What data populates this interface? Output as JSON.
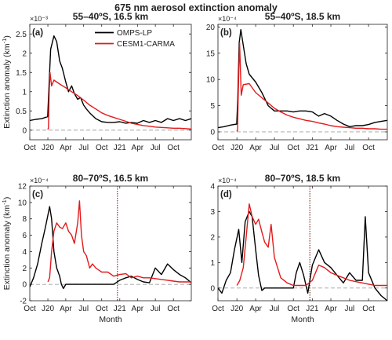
{
  "figure": {
    "title": "675 nm aerosol extinction anomaly",
    "ylabel_base": "Extinction anomaly (km",
    "ylabel_sup": "-1",
    "ylabel_end": ")",
    "xlabel": "Month"
  },
  "legend": {
    "items": [
      {
        "name": "OMPS-LP",
        "color": "#000000"
      },
      {
        "name": "CESM1-CARMA",
        "color": "#e31a1c"
      }
    ]
  },
  "chart_data": [
    {
      "type": "line",
      "panel": "(a)",
      "title": "55–40ºS, 16.5 km",
      "exponent_label": "×10⁻³",
      "x_tick_labels": [
        "Oct",
        "J20",
        "Apr",
        "Jul",
        "Oct",
        "J21",
        "Apr",
        "Jul",
        "Oct"
      ],
      "xlim": [
        "2019-10-01",
        "2021-12-31"
      ],
      "ylim": [
        -0.25,
        2.75
      ],
      "y_ticks": [
        0,
        0.5,
        1,
        1.5,
        2,
        2.5
      ],
      "y_tick_labels": [
        "0",
        "0.5",
        "1",
        "1.5",
        "2",
        "2.5"
      ],
      "zero_line": true,
      "series": [
        {
          "name": "OMPS-LP",
          "color": "#000000",
          "x": [
            "2019-10-01",
            "2019-11-01",
            "2019-12-01",
            "2019-12-31",
            "2020-01-07",
            "2020-01-15",
            "2020-02-01",
            "2020-02-15",
            "2020-03-01",
            "2020-03-15",
            "2020-04-01",
            "2020-04-15",
            "2020-05-01",
            "2020-05-15",
            "2020-06-01",
            "2020-06-15",
            "2020-07-01",
            "2020-07-15",
            "2020-08-01",
            "2020-09-01",
            "2020-10-01",
            "2020-11-01",
            "2020-12-01",
            "2021-01-01",
            "2021-02-01",
            "2021-03-01",
            "2021-04-01",
            "2021-05-01",
            "2021-06-01",
            "2021-07-01",
            "2021-08-01",
            "2021-09-01",
            "2021-10-01",
            "2021-11-01",
            "2021-12-01",
            "2021-12-31"
          ],
          "y": [
            0.25,
            0.28,
            0.3,
            0.35,
            1.2,
            2.1,
            2.45,
            2.3,
            1.8,
            1.6,
            1.25,
            1.0,
            1.15,
            0.95,
            0.8,
            0.85,
            0.65,
            0.55,
            0.45,
            0.3,
            0.22,
            0.2,
            0.2,
            0.22,
            0.18,
            0.2,
            0.18,
            0.25,
            0.2,
            0.25,
            0.2,
            0.3,
            0.25,
            0.3,
            0.25,
            0.3
          ]
        },
        {
          "name": "CESM1-CARMA",
          "color": "#e31a1c",
          "x": [
            "2019-12-31",
            "2020-01-04",
            "2020-01-08",
            "2020-01-12",
            "2020-01-20",
            "2020-02-01",
            "2020-03-01",
            "2020-04-01",
            "2020-05-01",
            "2020-06-01",
            "2020-07-01",
            "2020-08-01",
            "2020-09-01",
            "2020-10-01",
            "2020-11-01",
            "2020-12-01",
            "2021-01-01",
            "2021-02-01",
            "2021-03-01",
            "2021-04-01",
            "2021-05-01",
            "2021-06-01",
            "2021-07-01",
            "2021-08-01",
            "2021-09-01",
            "2021-10-01",
            "2021-11-01",
            "2021-12-01",
            "2021-12-31"
          ],
          "y": [
            0.02,
            0.05,
            1.0,
            1.5,
            1.15,
            1.3,
            1.2,
            1.1,
            1.0,
            0.9,
            0.78,
            0.65,
            0.55,
            0.45,
            0.38,
            0.33,
            0.28,
            0.23,
            0.18,
            0.15,
            0.12,
            0.1,
            0.08,
            0.07,
            0.06,
            0.05,
            0.05,
            0.04,
            0.03
          ]
        }
      ]
    },
    {
      "type": "line",
      "panel": "(b)",
      "title": "55–40ºS, 18.5 km",
      "exponent_label": "×10⁻⁴",
      "x_tick_labels": [
        "Oct",
        "J20",
        "Apr",
        "Jul",
        "Oct",
        "J21",
        "Apr",
        "Jul",
        "Oct"
      ],
      "xlim": [
        "2019-10-01",
        "2021-12-31"
      ],
      "ylim": [
        -1.5,
        20.5
      ],
      "y_ticks": [
        0,
        5,
        10,
        15,
        20
      ],
      "y_tick_labels": [
        "0",
        "5",
        "10",
        "15",
        "20"
      ],
      "zero_line": true,
      "series": [
        {
          "name": "OMPS-LP",
          "color": "#000000",
          "x": [
            "2019-10-01",
            "2019-11-01",
            "2019-12-01",
            "2019-12-31",
            "2020-01-05",
            "2020-01-12",
            "2020-01-20",
            "2020-02-01",
            "2020-02-15",
            "2020-03-01",
            "2020-04-01",
            "2020-05-01",
            "2020-06-01",
            "2020-07-01",
            "2020-08-01",
            "2020-09-01",
            "2020-10-01",
            "2020-11-01",
            "2020-12-01",
            "2021-01-01",
            "2021-02-01",
            "2021-03-01",
            "2021-04-01",
            "2021-05-01",
            "2021-06-01",
            "2021-07-01",
            "2021-08-01",
            "2021-09-01",
            "2021-10-01",
            "2021-11-01",
            "2021-12-01",
            "2021-12-31"
          ],
          "y": [
            0.8,
            1.0,
            1.3,
            1.5,
            6,
            17,
            19.5,
            16.5,
            13,
            11,
            9.5,
            7.5,
            5,
            4,
            4,
            4,
            3.8,
            4,
            4,
            3.8,
            3,
            3.5,
            3,
            2.2,
            1.5,
            1.0,
            1.2,
            1.2,
            1.4,
            1.8,
            2.0,
            2.2
          ]
        },
        {
          "name": "CESM1-CARMA",
          "color": "#e31a1c",
          "x": [
            "2019-12-31",
            "2020-01-04",
            "2020-01-08",
            "2020-01-14",
            "2020-01-22",
            "2020-02-01",
            "2020-03-01",
            "2020-04-01",
            "2020-05-01",
            "2020-06-01",
            "2020-07-01",
            "2020-08-01",
            "2020-09-01",
            "2020-10-01",
            "2020-11-01",
            "2020-12-01",
            "2021-01-01",
            "2021-02-01",
            "2021-03-01",
            "2021-04-01",
            "2021-05-01",
            "2021-06-01",
            "2021-07-01",
            "2021-08-01",
            "2021-09-01",
            "2021-10-01",
            "2021-11-01",
            "2021-12-01",
            "2021-12-31"
          ],
          "y": [
            0.1,
            0.3,
            8,
            17,
            7,
            9,
            9.2,
            7.5,
            6.5,
            5.5,
            4.5,
            3.8,
            3.2,
            2.8,
            2.5,
            2.2,
            2.0,
            1.7,
            1.5,
            1.2,
            1.0,
            0.9,
            0.8,
            0.7,
            0.7,
            0.6,
            0.6,
            0.5,
            0.5
          ]
        }
      ]
    },
    {
      "type": "line",
      "panel": "(c)",
      "title": "80–70ºS, 16.5 km",
      "exponent_label": "×10⁻⁴",
      "x_tick_labels": [
        "Oct",
        "J20",
        "Apr",
        "Jul",
        "Oct",
        "J21",
        "Apr",
        "Jul",
        "Oct"
      ],
      "xlim": [
        "2019-10-01",
        "2021-12-31"
      ],
      "ylim": [
        -2,
        12
      ],
      "y_ticks": [
        -2,
        0,
        2,
        4,
        6,
        8,
        10,
        12
      ],
      "y_tick_labels": [
        "-2",
        "0",
        "2",
        "4",
        "6",
        "8",
        "10",
        "12"
      ],
      "zero_line": true,
      "vertical_marker": "2020-12-20",
      "series": [
        {
          "name": "OMPS-LP",
          "color": "#000000",
          "x": [
            "2019-10-01",
            "2019-10-20",
            "2019-11-10",
            "2019-12-01",
            "2019-12-20",
            "2020-01-10",
            "2020-01-20",
            "2020-02-01",
            "2020-02-15",
            "2020-03-01",
            "2020-03-10",
            "2020-03-20",
            "2020-04-01",
            "2020-04-15",
            "2020-05-01",
            "2020-05-15",
            "2020-06-01",
            "2020-06-15",
            "2020-07-01",
            "2020-08-01",
            "2020-09-01",
            "2020-10-01",
            "2020-11-01",
            "2020-12-01",
            "2021-01-01",
            "2021-02-01",
            "2021-03-01",
            "2021-04-01",
            "2021-05-01",
            "2021-06-01",
            "2021-07-01",
            "2021-08-01",
            "2021-09-01",
            "2021-10-01",
            "2021-11-01",
            "2021-12-01",
            "2021-12-31"
          ],
          "y": [
            -0.3,
            0.8,
            2.5,
            5,
            7,
            9.5,
            8,
            4,
            2,
            1,
            0,
            -0.5,
            0,
            0,
            0,
            0,
            0,
            0,
            0,
            0,
            0,
            0,
            0,
            0,
            0.5,
            0.8,
            1.0,
            0.6,
            0.3,
            0.2,
            2.0,
            1.2,
            2.5,
            1.8,
            1.2,
            0.8,
            0.2
          ]
        },
        {
          "name": "CESM1-CARMA",
          "color": "#e31a1c",
          "x": [
            "2020-01-01",
            "2020-01-10",
            "2020-01-20",
            "2020-02-01",
            "2020-02-15",
            "2020-03-01",
            "2020-03-15",
            "2020-04-01",
            "2020-04-15",
            "2020-05-01",
            "2020-05-15",
            "2020-06-01",
            "2020-06-10",
            "2020-06-20",
            "2020-07-01",
            "2020-07-15",
            "2020-08-01",
            "2020-08-15",
            "2020-09-01",
            "2020-10-01",
            "2020-11-01",
            "2020-12-01",
            "2021-01-01",
            "2021-02-01",
            "2021-03-01",
            "2021-04-01",
            "2021-05-01",
            "2021-06-01",
            "2021-07-01",
            "2021-08-01",
            "2021-09-01",
            "2021-10-01",
            "2021-11-01",
            "2021-12-01",
            "2021-12-31"
          ],
          "y": [
            0.3,
            0.8,
            4,
            6.5,
            7.5,
            7,
            6.8,
            7.5,
            6.5,
            6,
            5,
            7.5,
            10.2,
            6,
            4,
            3.5,
            2,
            2.5,
            2,
            1.5,
            1.5,
            1.0,
            1.2,
            1.3,
            0.8,
            1.0,
            0.8,
            0.8,
            0.7,
            0.6,
            0.5,
            0.4,
            0.3,
            0.3,
            0.3
          ]
        }
      ]
    },
    {
      "type": "line",
      "panel": "(d)",
      "title": "80–70ºS, 18.5 km",
      "exponent_label": "×10⁻⁴",
      "x_tick_labels": [
        "Oct",
        "J20",
        "Apr",
        "Jul",
        "Oct",
        "J21",
        "Apr",
        "Jul",
        "Oct"
      ],
      "xlim": [
        "2019-10-01",
        "2021-12-31"
      ],
      "ylim": [
        -0.5,
        4
      ],
      "y_ticks": [
        0,
        1,
        2,
        3,
        4
      ],
      "y_tick_labels": [
        "0",
        "1",
        "2",
        "3",
        "4"
      ],
      "zero_line": true,
      "vertical_marker": "2020-12-20",
      "series": [
        {
          "name": "OMPS-LP",
          "color": "#000000",
          "x": [
            "2019-10-01",
            "2019-10-20",
            "2019-11-10",
            "2019-12-01",
            "2019-12-20",
            "2020-01-10",
            "2020-01-25",
            "2020-02-10",
            "2020-03-01",
            "2020-03-15",
            "2020-04-01",
            "2020-04-15",
            "2020-05-01",
            "2020-05-15",
            "2020-06-01",
            "2020-07-01",
            "2020-08-01",
            "2020-09-01",
            "2020-09-15",
            "2020-10-01",
            "2020-10-15",
            "2020-11-01",
            "2020-11-20",
            "2020-12-10",
            "2021-01-01",
            "2021-02-01",
            "2021-03-01",
            "2021-04-01",
            "2021-05-01",
            "2021-06-01",
            "2021-07-01",
            "2021-08-01",
            "2021-09-01",
            "2021-09-15",
            "2021-10-01",
            "2021-11-01",
            "2021-12-01",
            "2021-12-31"
          ],
          "y": [
            0,
            -0.2,
            0.3,
            0.6,
            1.5,
            2.3,
            1.0,
            2.6,
            3.0,
            2.8,
            1.5,
            0.5,
            -0.1,
            0,
            0,
            0,
            0,
            0,
            0,
            0,
            0.6,
            1.0,
            0.5,
            -0.2,
            0.9,
            1.5,
            1.0,
            0.8,
            0.5,
            0.2,
            0.6,
            0.3,
            0.3,
            2.8,
            0.6,
            0.0,
            -0.3,
            -0.5
          ]
        },
        {
          "name": "CESM1-CARMA",
          "color": "#e31a1c",
          "x": [
            "2020-01-01",
            "2020-01-15",
            "2020-02-01",
            "2020-02-15",
            "2020-03-01",
            "2020-03-15",
            "2020-04-01",
            "2020-04-15",
            "2020-05-01",
            "2020-05-15",
            "2020-06-01",
            "2020-06-15",
            "2020-07-01",
            "2020-08-01",
            "2020-09-01",
            "2020-10-01",
            "2020-11-01",
            "2020-12-01",
            "2021-01-01",
            "2021-02-01",
            "2021-03-01",
            "2021-04-01",
            "2021-05-01",
            "2021-06-01",
            "2021-07-01",
            "2021-08-01",
            "2021-09-01",
            "2021-10-01",
            "2021-11-01",
            "2021-12-01",
            "2021-12-31"
          ],
          "y": [
            0.1,
            0.3,
            0.8,
            2.0,
            3.3,
            2.8,
            2.5,
            2.7,
            2.2,
            1.8,
            1.6,
            2.5,
            1.2,
            0.4,
            0.2,
            0.1,
            0.1,
            0.1,
            0.3,
            0.9,
            0.8,
            0.6,
            0.5,
            0.4,
            0.3,
            0.25,
            0.2,
            0.15,
            0.1,
            0.1,
            0.1
          ]
        }
      ]
    }
  ]
}
